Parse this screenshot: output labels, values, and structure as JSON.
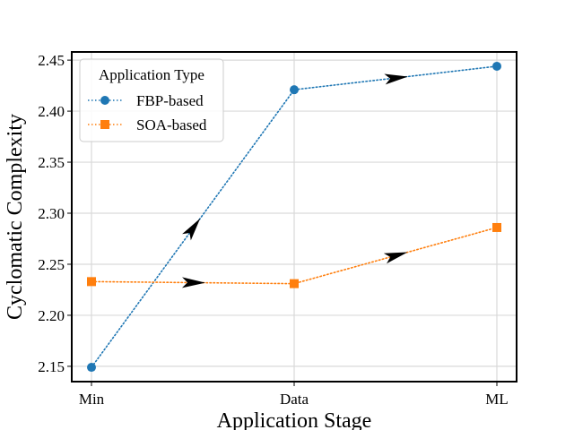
{
  "chart_data": {
    "type": "line",
    "title": "",
    "xlabel": "Application Stage",
    "ylabel": "Cyclomatic Complexity",
    "categories": [
      "Min",
      "Data",
      "ML"
    ],
    "ylim": [
      2.135,
      2.458
    ],
    "yticks": [
      "2.15",
      "2.20",
      "2.25",
      "2.30",
      "2.35",
      "2.40",
      "2.45"
    ],
    "grid": true,
    "legend": {
      "title": "Application Type",
      "placement": "top-left"
    },
    "series": [
      {
        "name": "FBP-based",
        "values": [
          2.149,
          2.421,
          2.444
        ],
        "color": "#1f77b4",
        "marker": "circle",
        "line_style": "dotted"
      },
      {
        "name": "SOA-based",
        "values": [
          2.233,
          2.231,
          2.286
        ],
        "color": "#ff7f0e",
        "marker": "square",
        "line_style": "dotted"
      }
    ]
  }
}
